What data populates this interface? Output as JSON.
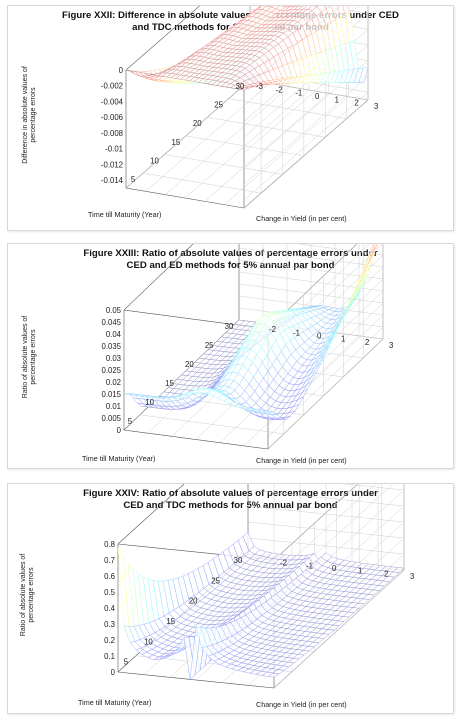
{
  "charts": [
    {
      "title_line1": "Figure XXII: Difference in absolute values of percentage errors under CED",
      "title_line2": "and TDC methods for 10% annual par bond",
      "zlabel_line1": "Difference in absolute values of",
      "zlabel_line2": "percentage errors",
      "xlabel": "Time till Maturity (Year)",
      "ylabel": "Change in Yield (in per cent)"
    },
    {
      "title_line1": "Figure XXIII: Ratio of absolute values of percentage errors under",
      "title_line2": "CED and ED methods for 5% annual par bond",
      "zlabel_line1": "Ratio of absolute values of",
      "zlabel_line2": "percentage errors",
      "xlabel": "Time till Maturity (Year)",
      "ylabel": "Change in Yield (in per cent)"
    },
    {
      "title_line1": "Figure XXIV: Ratio of absolute values of percentage errors under",
      "title_line2": "CED and TDC methods for 5% annual par bond",
      "zlabel_line1": "Ratio of absolute values of",
      "zlabel_line2": "percentage errors",
      "xlabel": "Time till Maturity (Year)",
      "ylabel": "Change in Yield (in per cent)"
    }
  ],
  "chart_data": [
    {
      "type": "surface",
      "title": "Figure XXII: Difference in absolute values of percentage errors under CED and TDC methods for 10% annual par bond",
      "xlabel": "Time till Maturity (Year)",
      "ylabel": "Change in Yield (in per cent)",
      "zlabel": "Difference in absolute values of percentage errors",
      "x_ticks": [
        5,
        10,
        15,
        20,
        25,
        30
      ],
      "y_ticks": [
        -3,
        -2,
        -1,
        0,
        1,
        2,
        3
      ],
      "z_ticks": [
        0,
        -0.002,
        -0.004,
        -0.006,
        -0.008,
        -0.01,
        -0.012,
        -0.014
      ],
      "x_range": [
        1,
        30
      ],
      "y_range": [
        -3,
        3
      ],
      "z_range": [
        -0.015,
        0
      ],
      "grid": true,
      "colormap": "jet",
      "shape": "dips"
    },
    {
      "type": "surface",
      "title": "Figure XXIII: Ratio of absolute values of percentage errors under CED and ED methods for 5% annual par bond",
      "xlabel": "Time till Maturity (Year)",
      "ylabel": "Change in Yield (in per cent)",
      "zlabel": "Ratio of absolute values of percentage errors",
      "x_ticks": [
        5,
        10,
        15,
        20,
        25,
        30
      ],
      "y_ticks": [
        -2,
        -1,
        0,
        1,
        2,
        3
      ],
      "z_ticks": [
        0,
        0.005,
        0.01,
        0.015,
        0.02,
        0.025,
        0.03,
        0.035,
        0.04,
        0.045,
        0.05
      ],
      "x_range": [
        1,
        30
      ],
      "y_range": [
        -3,
        3
      ],
      "z_range": [
        0,
        0.05
      ],
      "grid": true,
      "colormap": "jet",
      "shape": "saddle"
    },
    {
      "type": "surface",
      "title": "Figure XXIV: Ratio of absolute values of percentage errors under CED and TDC methods for 5% annual par bond",
      "xlabel": "Time till Maturity (Year)",
      "ylabel": "Change in Yield (in per cent)",
      "zlabel": "Ratio of absolute values of percentage errors",
      "x_ticks": [
        5,
        10,
        15,
        20,
        25,
        30
      ],
      "y_ticks": [
        -2,
        -1,
        0,
        1,
        2,
        3
      ],
      "z_ticks": [
        0,
        0.1,
        0.2,
        0.3,
        0.4,
        0.5,
        0.6,
        0.7,
        0.8
      ],
      "x_range": [
        1,
        30
      ],
      "y_range": [
        -3,
        3
      ],
      "z_range": [
        0,
        0.8
      ],
      "grid": true,
      "colormap": "jet",
      "shape": "spikes"
    }
  ]
}
